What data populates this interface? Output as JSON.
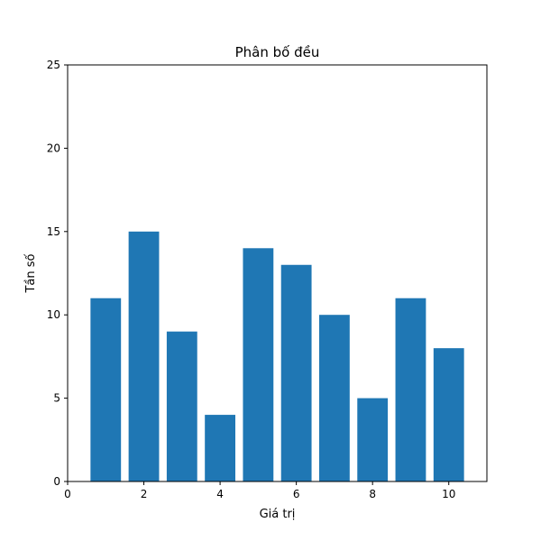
{
  "chart_data": {
    "type": "bar",
    "title": "Phân bố đều",
    "xlabel": "Giá trị",
    "ylabel": "Tần số",
    "x": [
      1,
      2,
      3,
      4,
      5,
      6,
      7,
      8,
      9,
      10
    ],
    "values": [
      11,
      15,
      9,
      4,
      14,
      13,
      10,
      5,
      11,
      8
    ],
    "bar_width": 0.8,
    "xlim": [
      0,
      11
    ],
    "ylim": [
      0,
      25
    ],
    "xticks": [
      "0",
      "2",
      "4",
      "6",
      "8",
      "10"
    ],
    "yticks": [
      "0",
      "5",
      "10",
      "15",
      "20",
      "25"
    ],
    "bar_color": "#1f77b4",
    "grid": false,
    "legend": "none"
  }
}
